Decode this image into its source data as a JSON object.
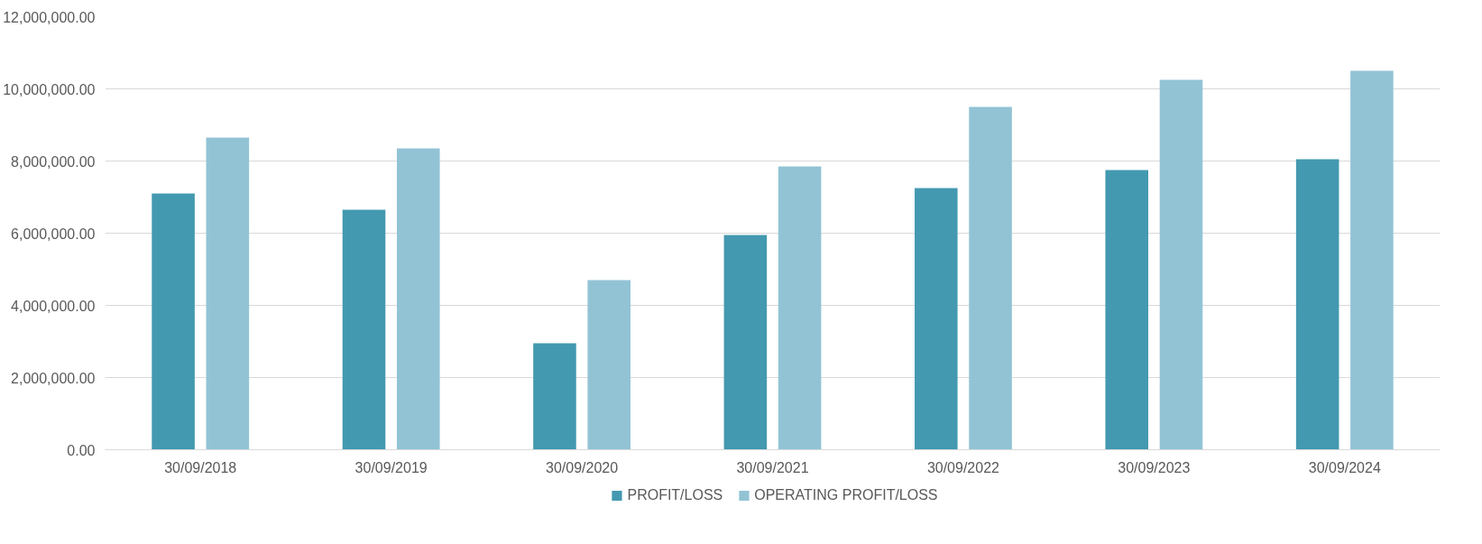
{
  "chart_data": {
    "type": "bar",
    "categories": [
      "30/09/2018",
      "30/09/2019",
      "30/09/2020",
      "30/09/2021",
      "30/09/2022",
      "30/09/2023",
      "30/09/2024"
    ],
    "series": [
      {
        "name": "PROFIT/LOSS",
        "color": "#4399b0",
        "values": [
          7100000,
          6650000,
          2950000,
          5950000,
          7250000,
          7750000,
          8050000
        ]
      },
      {
        "name": "OPERATING PROFIT/LOSS",
        "color": "#92c3d5",
        "values": [
          8650000,
          8350000,
          4700000,
          7850000,
          9500000,
          10250000,
          10500000
        ]
      }
    ],
    "ylim": [
      0,
      12000000
    ],
    "yticks": [
      {
        "value": 0,
        "label": "0.00"
      },
      {
        "value": 2000000,
        "label": "2,000,000.00"
      },
      {
        "value": 4000000,
        "label": "4,000,000.00"
      },
      {
        "value": 6000000,
        "label": "6,000,000.00"
      },
      {
        "value": 8000000,
        "label": "8,000,000.00"
      },
      {
        "value": 10000000,
        "label": "10,000,000.00"
      },
      {
        "value": 12000000,
        "label": "12,000,000.00"
      }
    ],
    "grid": "y",
    "legend": "bottom"
  }
}
